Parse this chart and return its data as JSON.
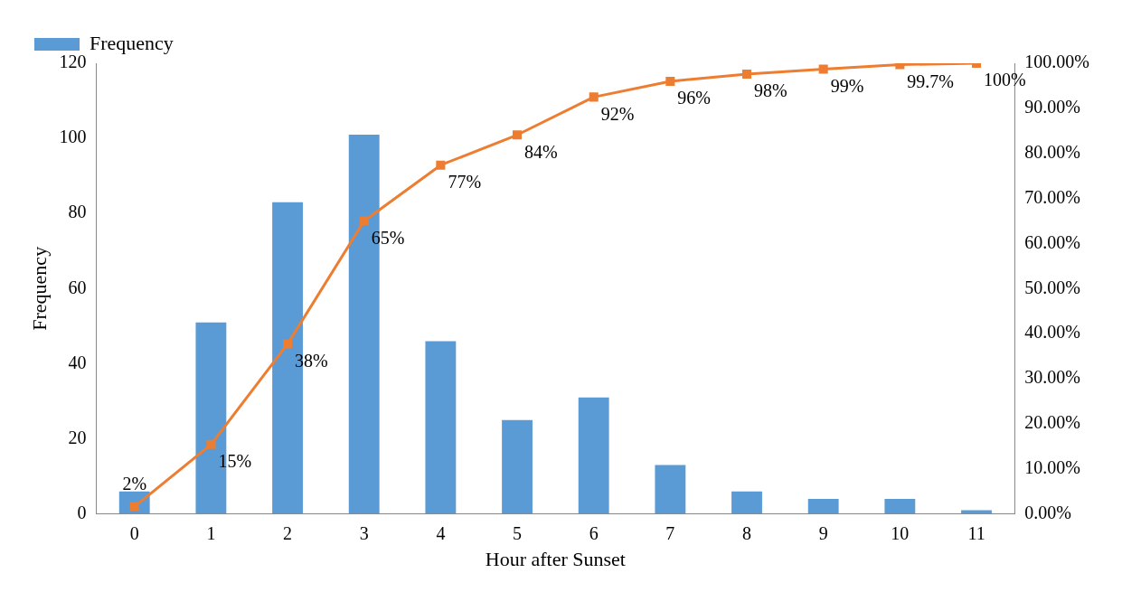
{
  "chart_data": {
    "type": "bar",
    "categories": [
      "0",
      "1",
      "2",
      "3",
      "4",
      "5",
      "6",
      "7",
      "8",
      "9",
      "10",
      "11"
    ],
    "series": [
      {
        "name": "Frequency",
        "color": "#5b9bd5",
        "values": [
          6,
          51,
          83,
          101,
          46,
          25,
          31,
          13,
          6,
          4,
          4,
          1
        ]
      },
      {
        "type": "line",
        "axis": "y2",
        "color": "#ed7d31",
        "marker": "square",
        "values": [
          1.6,
          15.4,
          37.7,
          65,
          77.4,
          84.1,
          92.5,
          96,
          97.6,
          98.7,
          99.7,
          100
        ],
        "value_labels": [
          "2%",
          "15%",
          "38%",
          "65%",
          "77%",
          "84%",
          "92%",
          "96%",
          "98%",
          "99%",
          "99.7%",
          "100%"
        ]
      }
    ],
    "xlabel": "Hour after Sunset",
    "ylabel": "Frequency",
    "ylim": [
      0,
      120
    ],
    "yticks": [
      0,
      20,
      40,
      60,
      80,
      100,
      120
    ],
    "y2lim": [
      0,
      100
    ],
    "y2ticks": [
      {
        "value": 0,
        "label": "0.00%"
      },
      {
        "value": 10,
        "label": "10.00%"
      },
      {
        "value": 20,
        "label": "20.00%"
      },
      {
        "value": 30,
        "label": "30.00%"
      },
      {
        "value": 40,
        "label": "40.00%"
      },
      {
        "value": 50,
        "label": "50.00%"
      },
      {
        "value": 60,
        "label": "60.00%"
      },
      {
        "value": 70,
        "label": "70.00%"
      },
      {
        "value": 80,
        "label": "80.00%"
      },
      {
        "value": 90,
        "label": "90.00%"
      },
      {
        "value": 100,
        "label": "100.00%"
      }
    ],
    "grid": false,
    "legend": "top left"
  }
}
